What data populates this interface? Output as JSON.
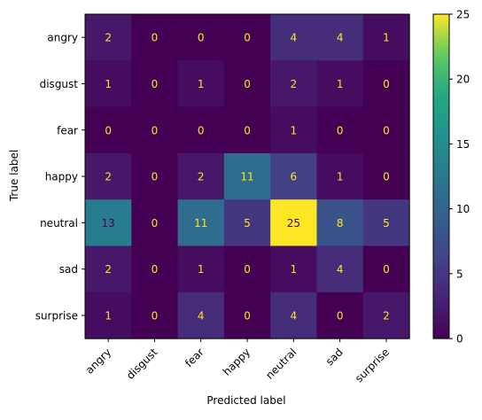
{
  "chart_data": {
    "type": "heatmap",
    "title": "",
    "xlabel": "Predicted label",
    "ylabel": "True label",
    "x_categories": [
      "angry",
      "disgust",
      "fear",
      "happy",
      "neutral",
      "sad",
      "surprise"
    ],
    "y_categories": [
      "angry",
      "disgust",
      "fear",
      "happy",
      "neutral",
      "sad",
      "surprise"
    ],
    "values": [
      [
        2,
        0,
        0,
        0,
        4,
        4,
        1
      ],
      [
        1,
        0,
        1,
        0,
        2,
        1,
        0
      ],
      [
        0,
        0,
        0,
        0,
        1,
        0,
        0
      ],
      [
        2,
        0,
        2,
        11,
        6,
        1,
        0
      ],
      [
        13,
        0,
        11,
        5,
        25,
        8,
        5
      ],
      [
        2,
        0,
        1,
        0,
        1,
        4,
        0
      ],
      [
        1,
        0,
        4,
        0,
        4,
        0,
        2
      ]
    ],
    "colormap": "viridis",
    "color_range": [
      0,
      25
    ],
    "colorbar_ticks": [
      0,
      5,
      10,
      15,
      20,
      25
    ],
    "x_tick_rotation": 45,
    "text_color_light": "#fde725",
    "text_color_dark": "#440154",
    "grid": false
  }
}
